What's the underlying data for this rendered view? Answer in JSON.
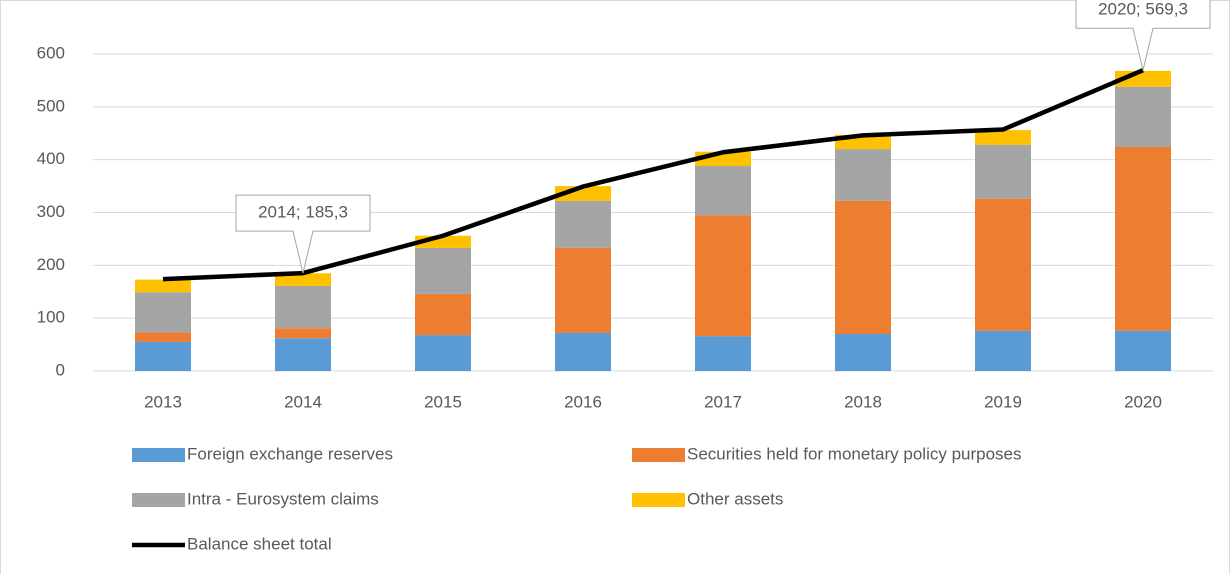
{
  "chart_data": {
    "type": "bar",
    "stacked": true,
    "categories": [
      "2013",
      "2014",
      "2015",
      "2016",
      "2017",
      "2018",
      "2019",
      "2020"
    ],
    "series": [
      {
        "name": "Foreign exchange reserves",
        "color": "#5b9bd5",
        "values": [
          55,
          62,
          68,
          72,
          66,
          70,
          76,
          76
        ]
      },
      {
        "name": "Securities held for monetary policy purposes",
        "color": "#ed7d31",
        "values": [
          18,
          19,
          78,
          161,
          229,
          252,
          250,
          348
        ]
      },
      {
        "name": "Intra - Eurosystem claims",
        "color": "#a5a5a5",
        "values": [
          76,
          80,
          87,
          89,
          93,
          98,
          102,
          114
        ]
      },
      {
        "name": "Other assets",
        "color": "#ffc000",
        "values": [
          24,
          24,
          23,
          28,
          27,
          27,
          28,
          30
        ]
      },
      {
        "name": "Balance sheet total",
        "color": "#000000",
        "type": "line",
        "values": [
          174,
          185.3,
          256,
          349,
          414,
          446,
          457,
          569.3
        ],
        "value_labels": [
          null,
          "2014; 185,3",
          null,
          null,
          null,
          null,
          null,
          "2020; 569,3"
        ]
      }
    ],
    "ylim": [
      0,
      600
    ],
    "yticks": [
      0,
      100,
      200,
      300,
      400,
      500,
      600
    ],
    "grid": true
  }
}
